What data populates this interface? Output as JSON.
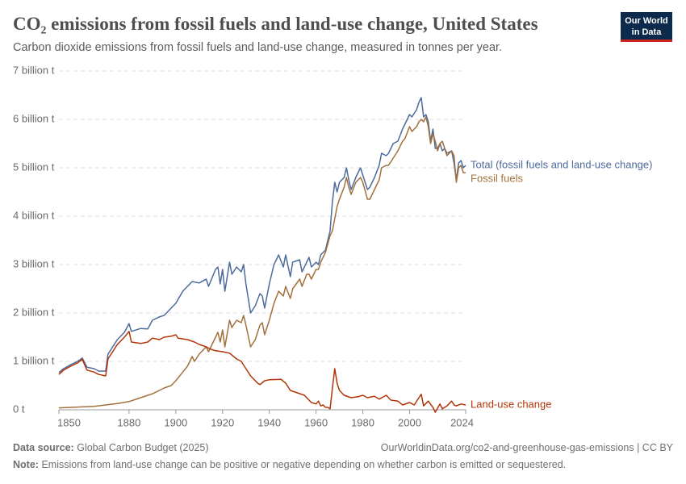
{
  "chart_data": {
    "type": "line",
    "title": "CO₂ emissions from fossil fuels and land-use change, United States",
    "subtitle": "Carbon dioxide emissions from fossil fuels and land-use change, measured in tonnes per year.",
    "logo": [
      "Our World",
      "in Data"
    ],
    "source": {
      "label": "Data source:",
      "text": "Global Carbon Budget (2025)"
    },
    "url": "OurWorldinData.org/co2-and-greenhouse-gas-emissions | CC BY",
    "note": {
      "label": "Note:",
      "text": "Emissions from land-use change can be positive or negative depending on whether carbon is emitted or sequestered."
    },
    "xlim": [
      1850,
      2024
    ],
    "xticks": [
      1850,
      1880,
      1900,
      1920,
      1940,
      1960,
      1980,
      2000,
      2024
    ],
    "ylim": [
      0,
      7
    ],
    "yticks": [
      {
        "value": 0,
        "label": "0 t"
      },
      {
        "value": 1,
        "label": "1 billion t"
      },
      {
        "value": 2,
        "label": "2 billion t"
      },
      {
        "value": 3,
        "label": "3 billion t"
      },
      {
        "value": 4,
        "label": "4 billion t"
      },
      {
        "value": 5,
        "label": "5 billion t"
      },
      {
        "value": 6,
        "label": "6 billion t"
      },
      {
        "value": 7,
        "label": "7 billion t"
      }
    ],
    "grid": true,
    "series": [
      {
        "name": "Total (fossil fuels and land-use change)",
        "color": "#4c6a9c",
        "x": [
          1850,
          1852,
          1855,
          1858,
          1860,
          1862,
          1865,
          1867,
          1870,
          1871,
          1873,
          1875,
          1878,
          1880,
          1881,
          1885,
          1888,
          1890,
          1893,
          1895,
          1898,
          1900,
          1903,
          1905,
          1907,
          1910,
          1913,
          1914,
          1917,
          1918,
          1919,
          1920,
          1921,
          1923,
          1924,
          1926,
          1928,
          1929,
          1930,
          1932,
          1934,
          1936,
          1937,
          1938,
          1940,
          1942,
          1944,
          1946,
          1947,
          1949,
          1950,
          1953,
          1954,
          1956,
          1957,
          1958,
          1960,
          1961,
          1962,
          1964,
          1966,
          1967,
          1968,
          1969,
          1970,
          1972,
          1973,
          1974,
          1975,
          1977,
          1979,
          1980,
          1982,
          1983,
          1985,
          1987,
          1988,
          1990,
          1991,
          1993,
          1995,
          1997,
          1998,
          2000,
          2001,
          2003,
          2004,
          2005,
          2006,
          2007,
          2008,
          2009,
          2010,
          2011,
          2012,
          2013,
          2014,
          2015,
          2016,
          2018,
          2019,
          2020,
          2021,
          2022,
          2023,
          2024
        ],
        "values": [
          0.77,
          0.85,
          0.93,
          1.0,
          1.07,
          0.88,
          0.85,
          0.8,
          0.8,
          1.15,
          1.3,
          1.45,
          1.6,
          1.78,
          1.62,
          1.68,
          1.67,
          1.85,
          1.92,
          1.95,
          2.1,
          2.2,
          2.45,
          2.55,
          2.65,
          2.62,
          2.7,
          2.55,
          2.9,
          2.95,
          2.6,
          2.9,
          2.45,
          3.05,
          2.8,
          2.95,
          2.85,
          3.0,
          2.6,
          2.0,
          2.15,
          2.4,
          2.35,
          2.1,
          2.6,
          3.0,
          3.2,
          2.95,
          3.2,
          2.75,
          3.05,
          3.1,
          2.85,
          3.05,
          3.15,
          2.95,
          3.05,
          3.0,
          3.2,
          3.3,
          3.7,
          4.3,
          4.7,
          4.5,
          4.7,
          4.8,
          5.0,
          4.75,
          4.55,
          4.8,
          5.0,
          4.85,
          4.55,
          4.6,
          4.8,
          5.05,
          5.3,
          5.25,
          5.3,
          5.5,
          5.55,
          5.8,
          5.9,
          6.1,
          6.05,
          6.2,
          6.35,
          6.45,
          6.05,
          6.1,
          5.95,
          5.55,
          5.8,
          5.4,
          5.4,
          5.5,
          5.35,
          5.4,
          5.3,
          5.35,
          5.1,
          4.75,
          5.1,
          5.15,
          5.0,
          5.05
        ]
      },
      {
        "name": "Fossil fuels",
        "color": "#a2703b",
        "x": [
          1850,
          1855,
          1860,
          1865,
          1870,
          1875,
          1880,
          1885,
          1890,
          1893,
          1895,
          1898,
          1900,
          1903,
          1905,
          1907,
          1908,
          1910,
          1913,
          1914,
          1917,
          1918,
          1919,
          1920,
          1921,
          1923,
          1924,
          1926,
          1928,
          1929,
          1930,
          1932,
          1934,
          1936,
          1937,
          1938,
          1940,
          1942,
          1944,
          1946,
          1947,
          1949,
          1950,
          1953,
          1954,
          1956,
          1957,
          1958,
          1960,
          1961,
          1962,
          1964,
          1966,
          1967,
          1968,
          1969,
          1970,
          1972,
          1973,
          1974,
          1975,
          1977,
          1979,
          1980,
          1982,
          1983,
          1985,
          1987,
          1988,
          1990,
          1991,
          1993,
          1995,
          1997,
          1998,
          2000,
          2001,
          2003,
          2004,
          2005,
          2006,
          2007,
          2008,
          2009,
          2010,
          2011,
          2012,
          2013,
          2014,
          2015,
          2016,
          2018,
          2019,
          2020,
          2021,
          2022,
          2023,
          2024
        ],
        "values": [
          0.04,
          0.05,
          0.06,
          0.07,
          0.1,
          0.13,
          0.17,
          0.25,
          0.33,
          0.4,
          0.45,
          0.5,
          0.6,
          0.78,
          0.9,
          1.1,
          1.0,
          1.15,
          1.3,
          1.2,
          1.5,
          1.6,
          1.4,
          1.65,
          1.3,
          1.85,
          1.7,
          1.85,
          1.8,
          1.95,
          1.75,
          1.3,
          1.45,
          1.75,
          1.8,
          1.55,
          1.85,
          2.2,
          2.45,
          2.35,
          2.55,
          2.3,
          2.5,
          2.7,
          2.55,
          2.8,
          2.8,
          2.7,
          2.9,
          2.9,
          3.05,
          3.25,
          3.6,
          3.7,
          3.95,
          4.2,
          4.35,
          4.6,
          4.8,
          4.6,
          4.45,
          4.7,
          4.8,
          4.7,
          4.35,
          4.35,
          4.55,
          4.75,
          5.0,
          5.05,
          5.05,
          5.2,
          5.35,
          5.55,
          5.6,
          5.85,
          5.75,
          5.85,
          5.95,
          6.0,
          5.95,
          6.05,
          5.85,
          5.5,
          5.7,
          5.55,
          5.35,
          5.5,
          5.55,
          5.4,
          5.25,
          5.35,
          5.25,
          4.7,
          5.0,
          5.05,
          4.9,
          4.9
        ]
      },
      {
        "name": "Land-use change",
        "color": "#b13507",
        "x": [
          1850,
          1852,
          1855,
          1858,
          1860,
          1862,
          1865,
          1867,
          1870,
          1871,
          1873,
          1875,
          1878,
          1880,
          1881,
          1885,
          1888,
          1890,
          1893,
          1895,
          1898,
          1900,
          1901,
          1905,
          1908,
          1910,
          1913,
          1915,
          1917,
          1920,
          1923,
          1926,
          1928,
          1930,
          1932,
          1935,
          1936,
          1938,
          1940,
          1945,
          1947,
          1949,
          1952,
          1955,
          1957,
          1958,
          1960,
          1961,
          1962,
          1963,
          1964,
          1965,
          1966,
          1967,
          1968,
          1969,
          1970,
          1972,
          1975,
          1978,
          1980,
          1982,
          1985,
          1987,
          1990,
          1992,
          1995,
          1997,
          2000,
          2002,
          2004,
          2005,
          2006,
          2008,
          2010,
          2011,
          2013,
          2014,
          2016,
          2018,
          2019,
          2020,
          2022,
          2024
        ],
        "values": [
          0.73,
          0.82,
          0.9,
          0.97,
          1.04,
          0.82,
          0.78,
          0.73,
          0.7,
          1.05,
          1.2,
          1.35,
          1.5,
          1.62,
          1.4,
          1.37,
          1.4,
          1.48,
          1.45,
          1.5,
          1.52,
          1.55,
          1.48,
          1.45,
          1.4,
          1.35,
          1.3,
          1.25,
          1.22,
          1.2,
          1.17,
          1.05,
          1.0,
          0.85,
          0.7,
          0.55,
          0.52,
          0.6,
          0.62,
          0.63,
          0.55,
          0.4,
          0.35,
          0.3,
          0.2,
          0.15,
          0.12,
          0.18,
          0.08,
          0.1,
          0.05,
          0.05,
          0.02,
          0.45,
          0.85,
          0.55,
          0.4,
          0.3,
          0.25,
          0.27,
          0.3,
          0.25,
          0.28,
          0.22,
          0.3,
          0.2,
          0.18,
          0.1,
          0.15,
          0.1,
          0.25,
          0.32,
          0.08,
          0.18,
          0.05,
          -0.05,
          0.12,
          0.02,
          0.08,
          0.18,
          0.1,
          0.08,
          0.12,
          0.1
        ]
      }
    ]
  }
}
